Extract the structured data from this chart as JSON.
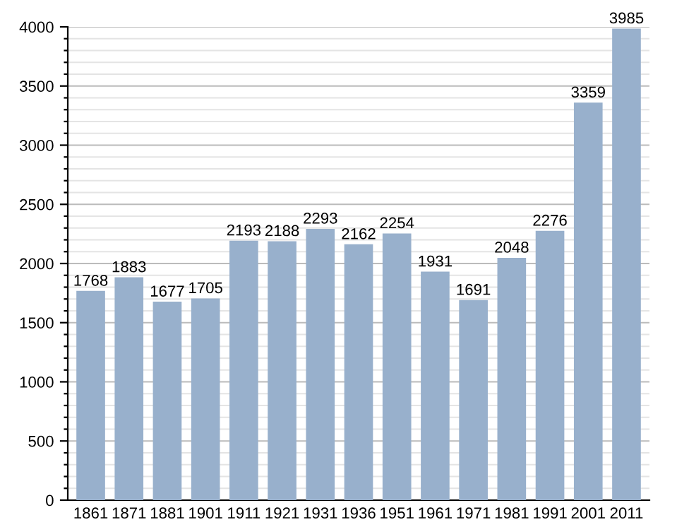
{
  "chart_data": {
    "type": "bar",
    "categories": [
      "1861",
      "1871",
      "1881",
      "1901",
      "1911",
      "1921",
      "1931",
      "1936",
      "1951",
      "1961",
      "1971",
      "1981",
      "1991",
      "2001",
      "2011"
    ],
    "values": [
      1768,
      1883,
      1677,
      1705,
      2193,
      2188,
      2293,
      2162,
      2254,
      1931,
      1691,
      2048,
      2276,
      3359,
      3985
    ],
    "color": "#98b0cc",
    "data_labels": true,
    "grid": "y",
    "ylim": [
      0,
      4000
    ],
    "yticks": [
      0,
      {
        "value": 100,
        "label": null
      },
      {
        "value": 200,
        "label": null
      },
      {
        "value": 300,
        "label": null
      },
      {
        "value": 400,
        "label": null
      },
      500,
      {
        "value": 600,
        "label": null
      },
      {
        "value": 700,
        "label": null
      },
      {
        "value": 800,
        "label": null
      },
      {
        "value": 900,
        "label": null
      },
      1000,
      {
        "value": 1100,
        "label": null
      },
      {
        "value": 1200,
        "label": null
      },
      {
        "value": 1300,
        "label": null
      },
      {
        "value": 1400,
        "label": null
      },
      1500,
      {
        "value": 1600,
        "label": null
      },
      {
        "value": 1700,
        "label": null
      },
      {
        "value": 1800,
        "label": null
      },
      {
        "value": 1900,
        "label": null
      },
      2000,
      {
        "value": 2100,
        "label": null
      },
      {
        "value": 2200,
        "label": null
      },
      {
        "value": 2300,
        "label": null
      },
      {
        "value": 2400,
        "label": null
      },
      2500,
      {
        "value": 2600,
        "label": null
      },
      {
        "value": 2700,
        "label": null
      },
      {
        "value": 2800,
        "label": null
      },
      {
        "value": 2900,
        "label": null
      },
      3000,
      {
        "value": 3100,
        "label": null
      },
      {
        "value": 3200,
        "label": null
      },
      {
        "value": 3300,
        "label": null
      },
      {
        "value": 3400,
        "label": null
      },
      3500,
      {
        "value": 3600,
        "label": null
      },
      {
        "value": 3700,
        "label": null
      },
      {
        "value": 3800,
        "label": null
      },
      {
        "value": 3900,
        "label": null
      },
      4000
    ]
  }
}
